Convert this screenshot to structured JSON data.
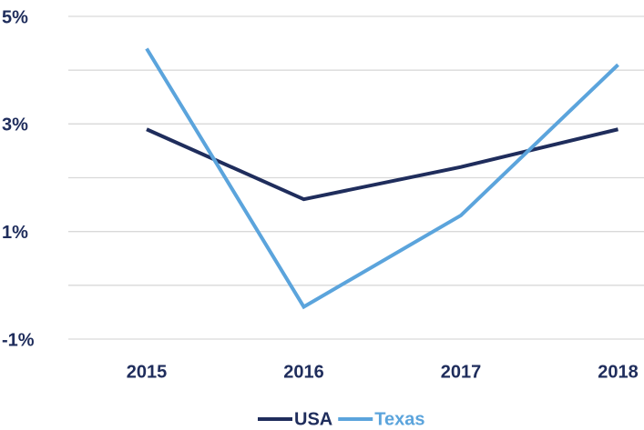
{
  "chart_data": {
    "type": "line",
    "categories": [
      "2015",
      "2016",
      "2017",
      "2018"
    ],
    "series": [
      {
        "name": "USA",
        "color": "#1f2d5c",
        "values": [
          2.9,
          1.6,
          2.2,
          2.9
        ]
      },
      {
        "name": "Texas",
        "color": "#5ba4dc",
        "values": [
          4.4,
          -0.4,
          1.3,
          4.1
        ]
      }
    ],
    "ylim": [
      -1,
      5
    ],
    "yticks": [
      {
        "value": -1,
        "label": "-1%"
      },
      {
        "value": 1,
        "label": "1%"
      },
      {
        "value": 3,
        "label": "3%"
      },
      {
        "value": 5,
        "label": "5%"
      }
    ],
    "minor_yticks": [
      0,
      2,
      4
    ],
    "grid": true,
    "legend": "bottom"
  }
}
